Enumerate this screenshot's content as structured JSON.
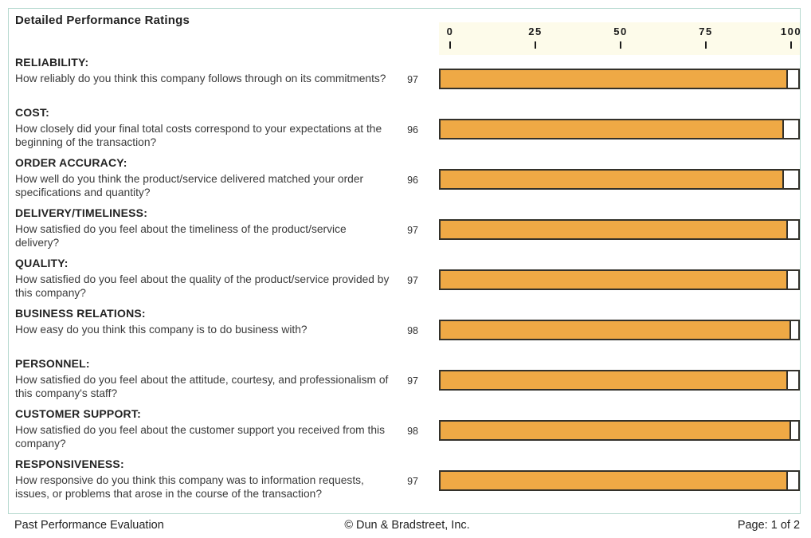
{
  "page": {
    "title": "Detailed Performance Ratings"
  },
  "axis": {
    "ticks": [
      "0",
      "25",
      "50",
      "75",
      "100"
    ]
  },
  "colors": {
    "bar_fill": "#EFA945",
    "bar_border": "#33312B",
    "axis_background": "#FDFBEA",
    "panel_border": "#B5D9CF"
  },
  "rows": [
    {
      "category": "RELIABILITY:",
      "question": "How reliably do you think this company follows through on its commitments?",
      "value": 97
    },
    {
      "category": "COST:",
      "question": "How closely did your final total costs correspond to your expectations at the beginning of the transaction?",
      "value": 96
    },
    {
      "category": "ORDER ACCURACY:",
      "question": "How well do you think the product/service delivered matched your order specifications and quantity?",
      "value": 96
    },
    {
      "category": "DELIVERY/TIMELINESS:",
      "question": "How satisfied do you feel about the timeliness of the product/service delivery?",
      "value": 97
    },
    {
      "category": "QUALITY:",
      "question": "How satisfied do you feel about the quality of the product/service provided by this company?",
      "value": 97
    },
    {
      "category": "BUSINESS RELATIONS:",
      "question": "How easy do you think this company is to do business with?",
      "value": 98
    },
    {
      "category": "PERSONNEL:",
      "question": "How satisfied do you feel about the attitude, courtesy, and professionalism of this company's staff?",
      "value": 97
    },
    {
      "category": "CUSTOMER SUPPORT:",
      "question": "How satisfied do you feel about the customer support you received from this company?",
      "value": 98
    },
    {
      "category": "RESPONSIVENESS:",
      "question": "How responsive do you think this company was to information requests, issues, or problems that arose in the course of the transaction?",
      "value": 97
    }
  ],
  "footer": {
    "left": "Past Performance Evaluation",
    "center": "© Dun & Bradstreet, Inc.",
    "right": "Page: 1 of 2"
  },
  "chart_data": {
    "type": "bar",
    "orientation": "horizontal",
    "title": "Detailed Performance Ratings",
    "categories": [
      "RELIABILITY",
      "COST",
      "ORDER ACCURACY",
      "DELIVERY/TIMELINESS",
      "QUALITY",
      "BUSINESS RELATIONS",
      "PERSONNEL",
      "CUSTOMER SUPPORT",
      "RESPONSIVENESS"
    ],
    "values": [
      97,
      96,
      96,
      97,
      97,
      98,
      97,
      98,
      97
    ],
    "xlabel": "",
    "ylabel": "",
    "xlim": [
      0,
      100
    ],
    "x_ticks": [
      0,
      25,
      50,
      75,
      100
    ],
    "grid": false,
    "legend": false,
    "bar_color": "#EFA945"
  }
}
